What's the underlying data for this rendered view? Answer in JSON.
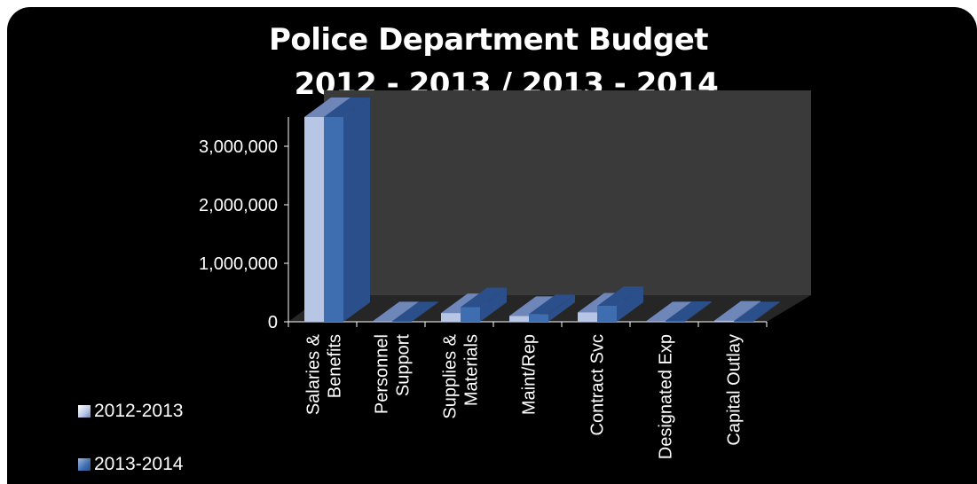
{
  "chart_data": {
    "type": "bar",
    "title": "Police Department Budget",
    "subtitle": "2012 - 2013 / 2013 - 2014",
    "categories": [
      "Salaries & Benefits",
      "Personnel Support",
      "Supplies & Materials",
      "Maint/Rep",
      "Contract Svc",
      "Designated Exp",
      "Capital Outlay"
    ],
    "category_lines": [
      [
        "Salaries &",
        "Benefits"
      ],
      [
        "Personnel",
        "Support"
      ],
      [
        "Supplies &",
        "Materials"
      ],
      [
        "Maint/Rep"
      ],
      [
        "Contract Svc"
      ],
      [
        "Designated Exp"
      ],
      [
        "Capital Outlay"
      ]
    ],
    "series": [
      {
        "name": "2012-2013",
        "values": [
          3500000,
          10000,
          150000,
          100000,
          160000,
          10000,
          20000
        ]
      },
      {
        "name": "2013-2014",
        "values": [
          3500000,
          10000,
          250000,
          130000,
          270000,
          15000,
          10000
        ]
      }
    ],
    "yticks": [
      0,
      1000000,
      2000000,
      3000000
    ],
    "ytick_labels": [
      "0",
      "1,000,000",
      "2,000,000",
      "3,000,000"
    ],
    "ylim": [
      0,
      3500000
    ],
    "xlabel": "",
    "ylabel": "",
    "legend_position": "bottom-left",
    "grid": false,
    "colors": {
      "series1_front": "#b8c6e6",
      "series1_side": "#6f86b8",
      "series2_front": "#3f6eb0",
      "series2_side": "#2a4f8a",
      "wall": "#3a3a3a",
      "floor": "#262626",
      "background": "#000000"
    }
  }
}
